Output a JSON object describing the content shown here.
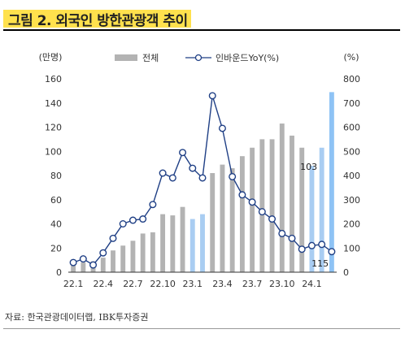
{
  "figure": {
    "title": "그림 2. 외국인 방한관광객 추이",
    "source": "자료: 한국관광데이터랩, IBK투자증권"
  },
  "chart_data": {
    "type": "bar",
    "x": [
      "22.1",
      "22.2",
      "22.3",
      "22.4",
      "22.5",
      "22.6",
      "22.7",
      "22.8",
      "22.9",
      "22.10",
      "22.11",
      "22.12",
      "23.1",
      "23.2",
      "23.3",
      "23.4",
      "23.5",
      "23.6",
      "23.7",
      "23.8",
      "23.9",
      "23.10",
      "23.11",
      "23.12",
      "24.1",
      "24.2",
      "24.3"
    ],
    "xticklabels": [
      "22.1",
      "22.4",
      "22.7",
      "22.10",
      "23.1",
      "23.4",
      "23.7",
      "23.10",
      "24.1"
    ],
    "series": [
      {
        "name": "전체",
        "type": "bar",
        "axis": "left",
        "values": [
          8,
          8,
          9,
          12,
          18,
          22,
          26,
          32,
          33,
          48,
          47,
          54,
          44,
          48,
          82,
          89,
          86,
          96,
          103,
          110,
          110,
          123,
          113,
          103,
          88,
          103,
          149
        ]
      },
      {
        "name": "인바운드YoY(%)",
        "type": "line",
        "axis": "right",
        "values": [
          40,
          55,
          30,
          80,
          140,
          200,
          215,
          220,
          280,
          410,
          390,
          495,
          430,
          390,
          730,
          595,
          395,
          320,
          290,
          250,
          220,
          160,
          140,
          95,
          110,
          115,
          85
        ]
      }
    ],
    "bar_colors": {
      "default": "#b3b3b3",
      "highlight": "#a9cdf2",
      "latest": "#8ec3f5"
    },
    "highlight_indices": [
      12,
      13,
      24,
      25
    ],
    "latest_index": 26,
    "line_color": "#1f3f85",
    "left_axis": {
      "label": "(만명)",
      "ylim": [
        0,
        160
      ],
      "ticks": [
        0,
        20,
        40,
        60,
        80,
        100,
        120,
        140,
        160
      ]
    },
    "right_axis": {
      "label": "(%)",
      "ylim": [
        0,
        800
      ],
      "ticks": [
        0,
        100,
        200,
        300,
        400,
        500,
        600,
        700,
        800
      ]
    },
    "annotations": [
      {
        "text": "103",
        "series": "전체",
        "index": 25
      },
      {
        "text": "115",
        "series": "인바운드YoY(%)",
        "index": 25
      }
    ],
    "legend": {
      "position": "top"
    }
  }
}
